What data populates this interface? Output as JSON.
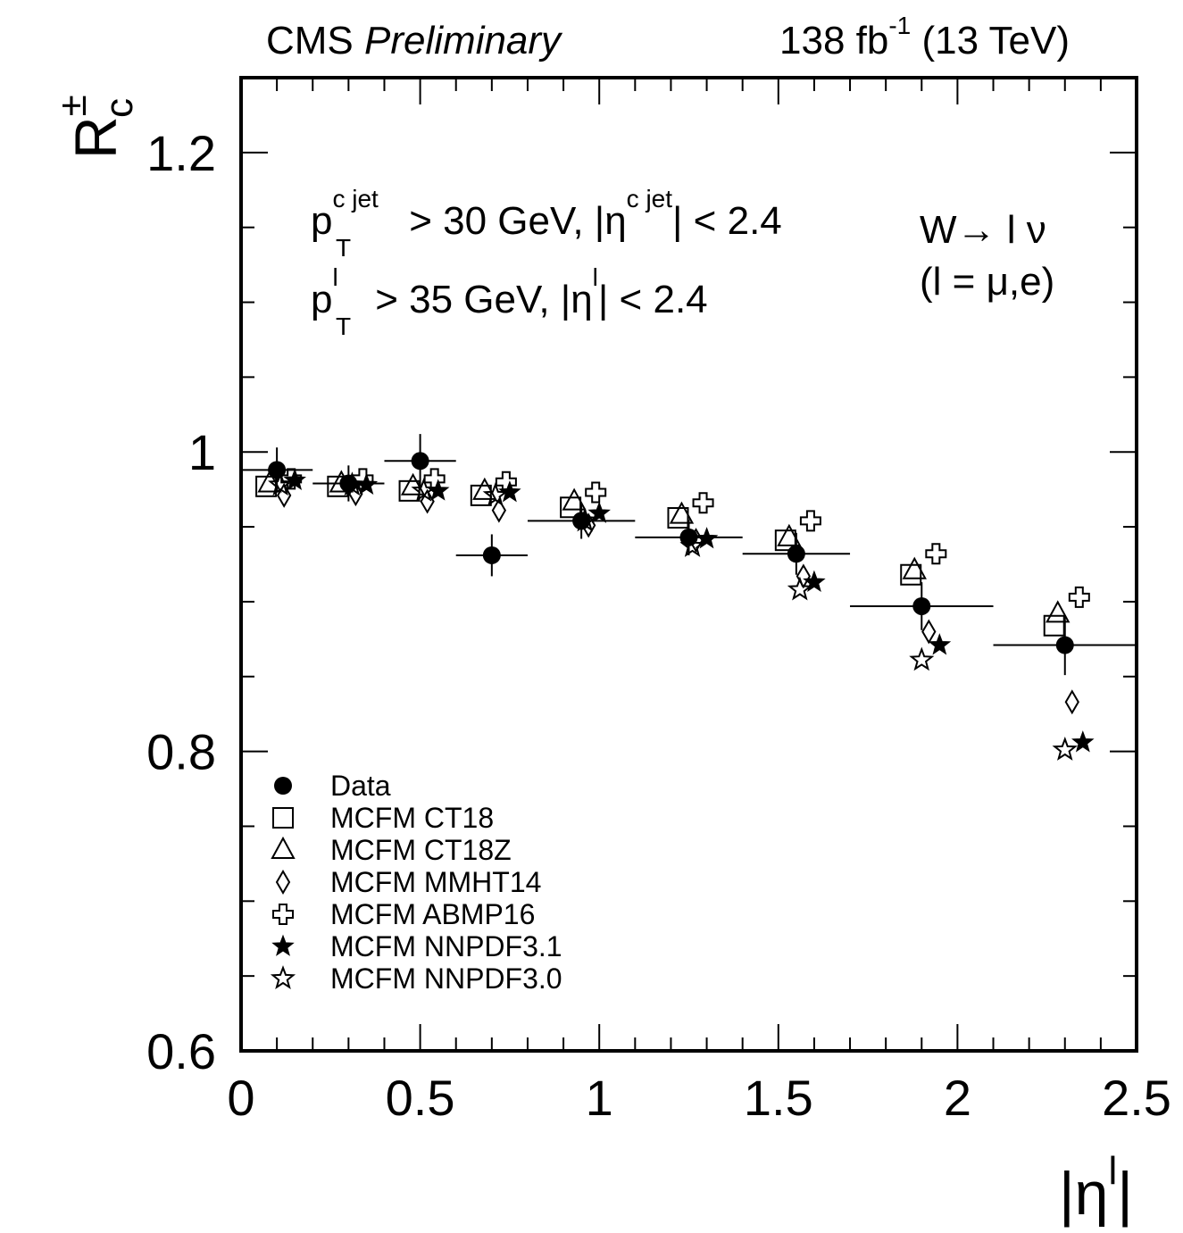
{
  "chart_data": {
    "type": "scatter",
    "title_parts": {
      "experiment": "CMS",
      "status": "Preliminary",
      "lumi": [
        "138 fb",
        "-1",
        " (13 TeV)"
      ]
    },
    "annotations": {
      "cut1": [
        "p",
        "c jet",
        "T",
        " > 30 GeV, |η",
        "c jet",
        "| < 2.4"
      ],
      "cut2": [
        "p",
        "l",
        "T",
        " > 35 GeV, |η",
        "l",
        "| < 2.4"
      ],
      "process": [
        "W→ l ν",
        "(l = μ,e)"
      ]
    },
    "ylabel": [
      "R",
      "±",
      "c"
    ],
    "xlabel": [
      "|η",
      "l",
      "|"
    ],
    "xlim": [
      0,
      2.5
    ],
    "ylim": [
      0.6,
      1.25
    ],
    "xticks": [
      0,
      0.5,
      1,
      1.5,
      2,
      2.5
    ],
    "yticks": [
      0.6,
      0.8,
      1,
      1.2
    ],
    "legend": "lower left",
    "series": [
      {
        "name": "Data",
        "marker": "circle-filled",
        "color": "#000000",
        "x": [
          0.1,
          0.3,
          0.5,
          0.7,
          0.95,
          1.25,
          1.55,
          1.9,
          2.3
        ],
        "xerr": [
          0.1,
          0.1,
          0.1,
          0.1,
          0.15,
          0.15,
          0.15,
          0.2,
          0.2
        ],
        "values": [
          0.988,
          0.979,
          0.994,
          0.931,
          0.954,
          0.943,
          0.932,
          0.897,
          0.871
        ],
        "yerr": [
          0.015,
          0.012,
          0.018,
          0.014,
          0.012,
          0.012,
          0.014,
          0.016,
          0.02
        ]
      },
      {
        "name": "MCFM CT18",
        "marker": "square",
        "color": "#000000",
        "x": [
          0.07,
          0.27,
          0.47,
          0.67,
          0.92,
          1.22,
          1.52,
          1.87,
          2.27
        ],
        "values": [
          0.977,
          0.977,
          0.974,
          0.971,
          0.963,
          0.956,
          0.941,
          0.918,
          0.884
        ]
      },
      {
        "name": "MCFM CT18Z",
        "marker": "triangle",
        "color": "#000000",
        "x": [
          0.08,
          0.28,
          0.48,
          0.68,
          0.93,
          1.23,
          1.53,
          1.88,
          2.28
        ],
        "values": [
          0.979,
          0.979,
          0.977,
          0.974,
          0.967,
          0.958,
          0.943,
          0.921,
          0.892
        ]
      },
      {
        "name": "MCFM MMHT14",
        "marker": "diamond",
        "color": "#000000",
        "x": [
          0.12,
          0.32,
          0.52,
          0.72,
          0.97,
          1.27,
          1.57,
          1.92,
          2.32
        ],
        "values": [
          0.971,
          0.972,
          0.967,
          0.961,
          0.951,
          0.941,
          0.917,
          0.88,
          0.833
        ]
      },
      {
        "name": "MCFM ABMP16",
        "marker": "cross",
        "color": "#000000",
        "x": [
          0.14,
          0.34,
          0.54,
          0.74,
          0.99,
          1.29,
          1.59,
          1.94,
          2.34
        ],
        "values": [
          0.982,
          0.982,
          0.982,
          0.98,
          0.973,
          0.966,
          0.954,
          0.932,
          0.903
        ]
      },
      {
        "name": "MCFM NNPDF3.1",
        "marker": "star-filled",
        "color": "#000000",
        "x": [
          0.15,
          0.35,
          0.55,
          0.75,
          1.0,
          1.3,
          1.6,
          1.95,
          2.35
        ],
        "values": [
          0.981,
          0.978,
          0.974,
          0.973,
          0.959,
          0.942,
          0.913,
          0.871,
          0.806
        ]
      },
      {
        "name": "MCFM NNPDF3.0",
        "marker": "star",
        "color": "#000000",
        "x": [
          0.11,
          0.31,
          0.51,
          0.71,
          0.96,
          1.26,
          1.56,
          1.9,
          2.3
        ],
        "values": [
          0.978,
          0.978,
          0.974,
          0.971,
          0.954,
          0.937,
          0.908,
          0.861,
          0.801
        ]
      }
    ]
  }
}
